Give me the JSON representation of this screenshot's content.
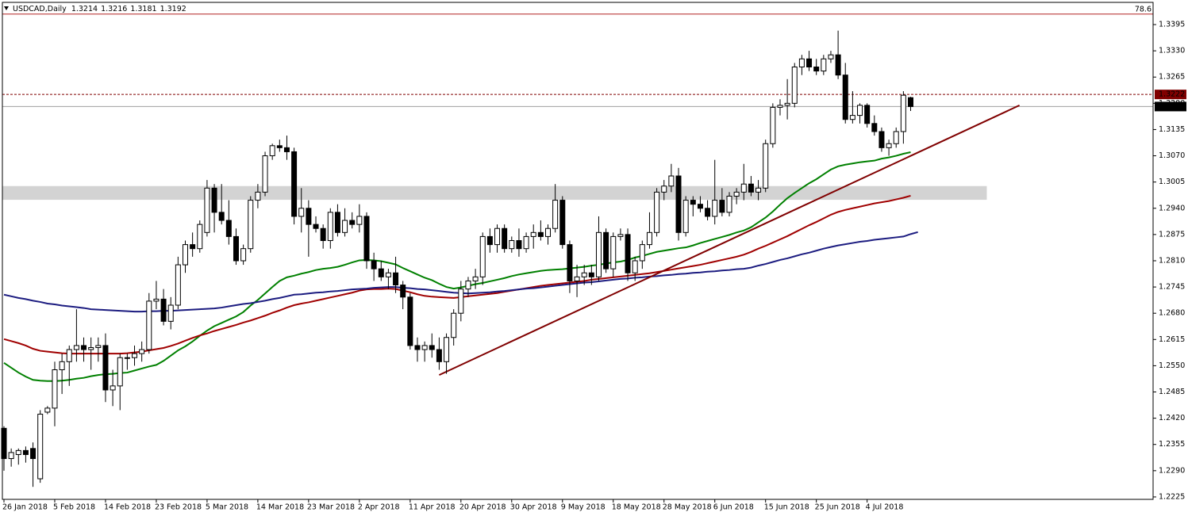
{
  "chart_data": {
    "type": "candlestick",
    "title": "USDCAD,Daily",
    "last_bar": [
      1.3214,
      1.3216,
      1.3181,
      1.3192
    ],
    "categories": [
      "26 Jan 2018",
      null,
      null,
      null,
      null,
      null,
      null,
      "5 Feb 2018",
      null,
      null,
      null,
      null,
      null,
      null,
      "14 Feb 2018",
      null,
      null,
      null,
      null,
      null,
      null,
      "23 Feb 2018",
      null,
      null,
      null,
      null,
      null,
      null,
      "5 Mar 2018",
      null,
      null,
      null,
      null,
      null,
      null,
      "14 Mar 2018",
      null,
      null,
      null,
      null,
      null,
      null,
      "23 Mar 2018",
      null,
      null,
      null,
      null,
      null,
      null,
      "2 Apr 2018",
      null,
      null,
      null,
      null,
      null,
      null,
      "11 Apr 2018",
      null,
      null,
      null,
      null,
      null,
      null,
      "20 Apr 2018",
      null,
      null,
      null,
      null,
      null,
      null,
      "30 Apr 2018",
      null,
      null,
      null,
      null,
      null,
      null,
      "9 May 2018",
      null,
      null,
      null,
      null,
      null,
      null,
      "18 May 2018",
      null,
      null,
      null,
      null,
      null,
      null,
      "28 May 2018",
      null,
      null,
      null,
      null,
      null,
      null,
      "6 Jun 2018",
      null,
      null,
      null,
      null,
      null,
      null,
      "15 Jun 2018",
      null,
      null,
      null,
      null,
      null,
      null,
      "25 Jun 2018",
      null,
      null,
      null,
      null,
      null,
      null,
      "4 Jul 2018",
      null,
      null,
      null,
      null,
      null,
      null
    ],
    "open": [
      1.2395,
      1.232,
      1.233,
      1.234,
      1.2345,
      1.227,
      1.2435,
      1.2445,
      1.254,
      1.256,
      1.259,
      1.26,
      1.259,
      1.2595,
      1.26,
      1.249,
      1.25,
      1.257,
      1.257,
      1.258,
      1.259,
      1.271,
      1.2715,
      1.266,
      1.27,
      1.28,
      1.285,
      1.284,
      1.288,
      1.299,
      1.293,
      1.291,
      1.287,
      1.281,
      1.284,
      1.296,
      1.298,
      1.307,
      1.3095,
      1.309,
      1.308,
      1.292,
      1.294,
      1.29,
      1.289,
      1.286,
      1.293,
      1.288,
      1.291,
      1.29,
      1.292,
      1.281,
      1.279,
      1.277,
      1.278,
      1.275,
      1.272,
      1.26,
      1.259,
      1.26,
      1.259,
      1.256,
      1.262,
      1.268,
      1.274,
      1.276,
      1.277,
      1.287,
      1.285,
      1.289,
      1.284,
      1.286,
      1.284,
      1.287,
      1.288,
      1.287,
      1.289,
      1.296,
      1.285,
      1.276,
      1.277,
      1.278,
      1.277,
      1.288,
      1.279,
      1.287,
      1.2875,
      1.278,
      1.281,
      1.285,
      1.288,
      1.298,
      1.2995,
      1.302,
      1.288,
      1.296,
      1.295,
      1.294,
      1.292,
      1.296,
      1.293,
      1.297,
      1.298,
      1.3,
      1.298,
      1.299,
      1.31,
      1.319,
      1.3195,
      1.32,
      1.329,
      1.331,
      1.329,
      1.328,
      1.331,
      1.332,
      1.327,
      1.316,
      1.317,
      1.3195,
      1.315,
      1.313,
      1.309,
      1.31,
      1.313,
      1.3214
    ],
    "high": [
      1.24,
      1.2345,
      1.2345,
      1.235,
      1.236,
      1.244,
      1.245,
      1.256,
      1.258,
      1.26,
      1.269,
      1.262,
      1.262,
      1.262,
      1.263,
      1.254,
      1.258,
      1.258,
      1.26,
      1.261,
      1.273,
      1.276,
      1.274,
      1.272,
      1.282,
      1.286,
      1.288,
      1.291,
      1.301,
      1.3,
      1.3,
      1.296,
      1.289,
      1.285,
      1.297,
      1.3,
      1.308,
      1.31,
      1.311,
      1.312,
      1.309,
      1.299,
      1.296,
      1.292,
      1.29,
      1.294,
      1.295,
      1.294,
      1.293,
      1.295,
      1.293,
      1.283,
      1.281,
      1.279,
      1.282,
      1.276,
      1.273,
      1.262,
      1.261,
      1.263,
      1.262,
      1.263,
      1.269,
      1.276,
      1.277,
      1.279,
      1.288,
      1.289,
      1.29,
      1.29,
      1.287,
      1.289,
      1.288,
      1.29,
      1.291,
      1.29,
      1.3,
      1.297,
      1.286,
      1.28,
      1.28,
      1.28,
      1.292,
      1.289,
      1.288,
      1.289,
      1.289,
      1.282,
      1.286,
      1.293,
      1.299,
      1.301,
      1.305,
      1.304,
      1.297,
      1.297,
      1.297,
      1.296,
      1.306,
      1.299,
      1.298,
      1.299,
      1.305,
      1.302,
      1.301,
      1.311,
      1.32,
      1.321,
      1.326,
      1.33,
      1.332,
      1.333,
      1.331,
      1.332,
      1.333,
      1.338,
      1.33,
      1.323,
      1.32,
      1.32,
      1.317,
      1.314,
      1.311,
      1.314,
      1.323,
      1.3216
    ],
    "low": [
      1.229,
      1.23,
      1.2305,
      1.231,
      1.225,
      1.226,
      1.243,
      1.24,
      1.248,
      1.25,
      1.256,
      1.256,
      1.254,
      1.256,
      1.246,
      1.245,
      1.244,
      1.254,
      1.255,
      1.256,
      1.258,
      1.269,
      1.265,
      1.264,
      1.269,
      1.278,
      1.282,
      1.283,
      1.287,
      1.288,
      1.29,
      1.285,
      1.28,
      1.28,
      1.283,
      1.294,
      1.297,
      1.306,
      1.308,
      1.306,
      1.29,
      1.288,
      1.282,
      1.288,
      1.284,
      1.284,
      1.287,
      1.287,
      1.289,
      1.288,
      1.279,
      1.276,
      1.276,
      1.274,
      1.273,
      1.269,
      1.259,
      1.256,
      1.256,
      1.257,
      1.254,
      1.253,
      1.26,
      1.266,
      1.272,
      1.274,
      1.275,
      1.283,
      1.283,
      1.283,
      1.283,
      1.282,
      1.283,
      1.284,
      1.286,
      1.285,
      1.288,
      1.284,
      1.273,
      1.272,
      1.275,
      1.275,
      1.276,
      1.278,
      1.277,
      1.286,
      1.276,
      1.276,
      1.279,
      1.284,
      1.287,
      1.296,
      1.298,
      1.286,
      1.287,
      1.292,
      1.293,
      1.291,
      1.29,
      1.292,
      1.292,
      1.295,
      1.296,
      1.297,
      1.296,
      1.298,
      1.309,
      1.317,
      1.316,
      1.319,
      1.327,
      1.328,
      1.327,
      1.327,
      1.33,
      1.326,
      1.315,
      1.315,
      1.315,
      1.314,
      1.312,
      1.308,
      1.307,
      1.309,
      1.31,
      1.3181
    ],
    "close": [
      1.232,
      1.2335,
      1.234,
      1.233,
      1.232,
      1.243,
      1.2445,
      1.254,
      1.256,
      1.259,
      1.26,
      1.259,
      1.2595,
      1.26,
      1.249,
      1.25,
      1.257,
      1.257,
      1.258,
      1.259,
      1.271,
      1.2715,
      1.266,
      1.27,
      1.28,
      1.285,
      1.284,
      1.29,
      1.299,
      1.293,
      1.291,
      1.287,
      1.281,
      1.284,
      1.296,
      1.298,
      1.307,
      1.3095,
      1.309,
      1.308,
      1.292,
      1.294,
      1.29,
      1.289,
      1.286,
      1.293,
      1.288,
      1.291,
      1.29,
      1.292,
      1.281,
      1.279,
      1.277,
      1.278,
      1.275,
      1.272,
      1.26,
      1.259,
      1.26,
      1.259,
      1.256,
      1.262,
      1.268,
      1.274,
      1.276,
      1.277,
      1.287,
      1.285,
      1.289,
      1.284,
      1.286,
      1.284,
      1.287,
      1.288,
      1.287,
      1.289,
      1.296,
      1.285,
      1.276,
      1.277,
      1.278,
      1.277,
      1.288,
      1.279,
      1.287,
      1.2875,
      1.278,
      1.281,
      1.285,
      1.288,
      1.298,
      1.2995,
      1.302,
      1.288,
      1.296,
      1.295,
      1.294,
      1.292,
      1.296,
      1.293,
      1.297,
      1.298,
      1.3,
      1.298,
      1.299,
      1.31,
      1.319,
      1.3195,
      1.32,
      1.329,
      1.331,
      1.329,
      1.328,
      1.331,
      1.332,
      1.327,
      1.316,
      1.317,
      1.3195,
      1.315,
      1.313,
      1.309,
      1.31,
      1.313,
      1.322,
      1.3192
    ],
    "up_color": "#ffffff",
    "down_color": "#000000",
    "moving_averages": [
      {
        "color": "#008000",
        "values": [
          1.2557,
          1.2545,
          1.2533,
          1.2523,
          1.2515,
          1.2513,
          1.2512,
          1.2512,
          1.2513,
          1.2515,
          1.2518,
          1.252,
          1.2524,
          1.2527,
          1.2529,
          1.253,
          1.2532,
          1.2533,
          1.2538,
          1.2543,
          1.2548,
          1.2552,
          1.2562,
          1.2575,
          1.2588,
          1.2598,
          1.261,
          1.2624,
          1.2637,
          1.2648,
          1.2656,
          1.2664,
          1.2672,
          1.2683,
          1.2699,
          1.2713,
          1.2729,
          1.2745,
          1.276,
          1.2769,
          1.2773,
          1.2778,
          1.2782,
          1.2787,
          1.279,
          1.2792,
          1.2795,
          1.28,
          1.2806,
          1.2811,
          1.2812,
          1.2811,
          1.2809,
          1.2805,
          1.2801,
          1.2792,
          1.2784,
          1.2776,
          1.2768,
          1.2762,
          1.2753,
          1.2745,
          1.2741,
          1.2744,
          1.2748,
          1.2752,
          1.2755,
          1.2759,
          1.2763,
          1.2767,
          1.2772,
          1.2776,
          1.2779,
          1.2782,
          1.2785,
          1.2787,
          1.2788,
          1.2789,
          1.2791,
          1.2793,
          1.2795,
          1.2798,
          1.28,
          1.2803,
          1.2806,
          1.2808,
          1.2812,
          1.2818,
          1.2822,
          1.2827,
          1.2832,
          1.2835,
          1.2838,
          1.2841,
          1.2843,
          1.2848,
          1.2854,
          1.2859,
          1.2864,
          1.2869,
          1.2874,
          1.288,
          1.2885,
          1.2893,
          1.2905,
          1.2917,
          1.2932,
          1.2949,
          1.2965,
          1.2978,
          1.299,
          1.3002,
          1.3012,
          1.3024,
          1.3036,
          1.3044,
          1.3048,
          1.3051,
          1.3054,
          1.3056,
          1.3058,
          1.3063,
          1.3066,
          1.307,
          1.3075,
          1.3079
        ]
      },
      {
        "color": "#a00000",
        "values": [
          1.2616,
          1.2611,
          1.2606,
          1.26,
          1.2592,
          1.2587,
          1.2585,
          1.2583,
          1.2581,
          1.258,
          1.258,
          1.258,
          1.258,
          1.258,
          1.258,
          1.258,
          1.258,
          1.2581,
          1.2583,
          1.2585,
          1.2588,
          1.2591,
          1.2594,
          1.2599,
          1.2605,
          1.2612,
          1.2619,
          1.2625,
          1.263,
          1.2636,
          1.2641,
          1.2646,
          1.2651,
          1.2657,
          1.2662,
          1.2668,
          1.2674,
          1.2681,
          1.2687,
          1.2694,
          1.27,
          1.2704,
          1.2707,
          1.2711,
          1.2715,
          1.2719,
          1.2723,
          1.2727,
          1.2731,
          1.2736,
          1.2739,
          1.274,
          1.274,
          1.2741,
          1.274,
          1.2736,
          1.2732,
          1.2727,
          1.2723,
          1.2721,
          1.272,
          1.2719,
          1.2718,
          1.272,
          1.2722,
          1.2724,
          1.2726,
          1.2728,
          1.273,
          1.2733,
          1.2736,
          1.2739,
          1.2742,
          1.2745,
          1.2748,
          1.275,
          1.2752,
          1.2754,
          1.2756,
          1.2758,
          1.276,
          1.2763,
          1.2765,
          1.2767,
          1.2769,
          1.2771,
          1.2773,
          1.2775,
          1.2777,
          1.2779,
          1.2782,
          1.2785,
          1.2788,
          1.2791,
          1.2794,
          1.2797,
          1.28,
          1.2804,
          1.2808,
          1.2812,
          1.2816,
          1.282,
          1.2825,
          1.2832,
          1.284,
          1.2847,
          1.2855,
          1.2863,
          1.2871,
          1.288,
          1.2889,
          1.2898,
          1.2906,
          1.2915,
          1.2924,
          1.2931,
          1.2936,
          1.294,
          1.2944,
          1.2948,
          1.2952,
          1.2955,
          1.2958,
          1.2962,
          1.2966,
          1.2971
        ]
      },
      {
        "color": "#1c1c80",
        "values": [
          1.2726,
          1.2722,
          1.2718,
          1.2715,
          1.2711,
          1.2708,
          1.2704,
          1.2702,
          1.2699,
          1.2697,
          1.2695,
          1.2693,
          1.269,
          1.2689,
          1.2688,
          1.2687,
          1.2686,
          1.2685,
          1.2684,
          1.2684,
          1.2685,
          1.2685,
          1.2686,
          1.2686,
          1.2687,
          1.2688,
          1.2689,
          1.269,
          1.2691,
          1.2692,
          1.2694,
          1.2697,
          1.27,
          1.2703,
          1.2705,
          1.2708,
          1.2711,
          1.2715,
          1.2718,
          1.2722,
          1.2726,
          1.2727,
          1.2729,
          1.2731,
          1.2732,
          1.2734,
          1.2735,
          1.2737,
          1.2739,
          1.274,
          1.2741,
          1.2743,
          1.2744,
          1.2745,
          1.2745,
          1.2743,
          1.2742,
          1.274,
          1.2739,
          1.2737,
          1.2735,
          1.2733,
          1.2731,
          1.273,
          1.2729,
          1.273,
          1.2731,
          1.2732,
          1.2734,
          1.2735,
          1.2737,
          1.2739,
          1.2741,
          1.2742,
          1.2744,
          1.2746,
          1.2748,
          1.275,
          1.2752,
          1.2754,
          1.2756,
          1.2757,
          1.2759,
          1.2761,
          1.2763,
          1.2765,
          1.2766,
          1.2768,
          1.2769,
          1.2771,
          1.2772,
          1.2774,
          1.2775,
          1.2777,
          1.2778,
          1.278,
          1.2781,
          1.2783,
          1.2784,
          1.2786,
          1.2787,
          1.2789,
          1.279,
          1.2793,
          1.2798,
          1.2802,
          1.2807,
          1.2812,
          1.2816,
          1.2821,
          1.2826,
          1.283,
          1.2835,
          1.284,
          1.2844,
          1.2848,
          1.2851,
          1.2854,
          1.2857,
          1.2859,
          1.2862,
          1.2864,
          1.2866,
          1.2868,
          1.287,
          1.2876,
          1.2881
        ]
      }
    ],
    "trendline": {
      "color": "#800000",
      "start": {
        "index": 60,
        "price": 1.2527
      },
      "end": {
        "index": 140,
        "price": 1.3195
      }
    },
    "zone": {
      "color": "#d3d3d3",
      "low": 1.2961,
      "high": 1.2995,
      "end_index": 135.5
    },
    "fib_level": {
      "value": 1.3421,
      "label": "78.6",
      "color": "#b22222"
    },
    "price_lines": [
      {
        "value": 1.3222,
        "style": "dashed",
        "color": "#800000"
      },
      {
        "value": 1.3192,
        "style": "solid",
        "color": "#000000"
      }
    ],
    "ylim": [
      1.2219,
      1.345
    ],
    "yticks": [
      {
        "value": 1.3395,
        "label": "1.3395"
      },
      {
        "value": 1.333,
        "label": "1.3330"
      },
      {
        "value": 1.3265,
        "label": "1.3265"
      },
      {
        "value": 1.32,
        "label": "1.3200"
      },
      {
        "value": 1.3135,
        "label": "1.3135"
      },
      {
        "value": 1.307,
        "label": "1.3070"
      },
      {
        "value": 1.3005,
        "label": "1.3005"
      },
      {
        "value": 1.294,
        "label": "1.2940"
      },
      {
        "value": 1.2875,
        "label": "1.2875"
      },
      {
        "value": 1.281,
        "label": "1.2810"
      },
      {
        "value": 1.2745,
        "label": "1.2745"
      },
      {
        "value": 1.268,
        "label": "1.2680"
      },
      {
        "value": 1.2615,
        "label": "1.2615"
      },
      {
        "value": 1.255,
        "label": "1.2550"
      },
      {
        "value": 1.2485,
        "label": "1.2485"
      },
      {
        "value": 1.242,
        "label": "1.2420"
      },
      {
        "value": 1.2355,
        "label": "1.2355"
      },
      {
        "value": 1.229,
        "label": "1.2290"
      },
      {
        "value": 1.2225,
        "label": "1.2225"
      }
    ],
    "grid": false
  }
}
